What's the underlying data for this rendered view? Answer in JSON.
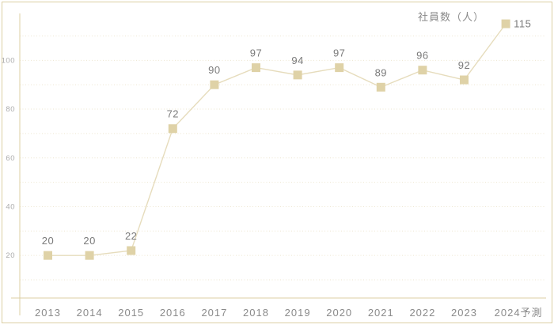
{
  "chart_data": {
    "type": "line",
    "title": "",
    "xlabel": "",
    "ylabel": "",
    "series_name": "社員数（人）",
    "categories": [
      "2013",
      "2014",
      "2015",
      "2016",
      "2017",
      "2018",
      "2019",
      "2020",
      "2021",
      "2022",
      "2023",
      "2024予測"
    ],
    "values": [
      20,
      20,
      22,
      72,
      90,
      97,
      94,
      97,
      89,
      96,
      92,
      115
    ],
    "data_labels": [
      "20",
      "20",
      "22",
      "72",
      "90",
      "97",
      "94",
      "97",
      "89",
      "96",
      "92",
      "115"
    ],
    "marker_shape": "square",
    "grid": "horizontal-dotted",
    "legend_position": "top-right",
    "y_axis": {
      "gridline_values": [
        10,
        20,
        30,
        40,
        50,
        60,
        70,
        80,
        90,
        100,
        110
      ],
      "tick_labels": [
        "20",
        "40",
        "60",
        "80",
        "100"
      ],
      "tick_values": [
        20,
        40,
        60,
        80,
        100
      ]
    },
    "colors": {
      "background": "#FFFFFF",
      "frame_border": "#DCCFA3",
      "axis_line": "#DCCFA3",
      "gridline": "#EDE6D0",
      "series_line": "#E6DCBC",
      "marker_fill": "#DFD2A7",
      "y_tick_text": "#ABABAB",
      "category_text": "#8A8A8A",
      "data_label_text": "#7A7A7A",
      "legend_text": "#8A8A8A"
    }
  }
}
